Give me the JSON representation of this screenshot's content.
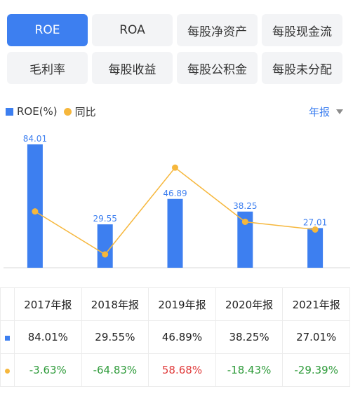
{
  "tabs": [
    "ROE",
    "ROA",
    "每股净资产",
    "每股现金流",
    "毛利率",
    "每股收益",
    "每股公积金",
    "每股未分配"
  ],
  "active_tab": "ROE",
  "legend": {
    "bar_label": "ROE(%)",
    "line_label": "同比"
  },
  "period_selector": "年报",
  "colors": {
    "accent": "#3d7ff0",
    "line": "#f6b73c",
    "negative": "#2e9b3a",
    "positive": "#e03a3a"
  },
  "chart_data": {
    "type": "bar",
    "categories": [
      "2017年报",
      "2018年报",
      "2019年报",
      "2020年报",
      "2021年报"
    ],
    "series": [
      {
        "name": "ROE(%)",
        "type": "bar",
        "values": [
          84.01,
          29.55,
          46.89,
          38.25,
          27.01
        ]
      },
      {
        "name": "同比",
        "type": "line",
        "values": [
          -3.63,
          -64.83,
          58.68,
          -18.43,
          -29.39
        ]
      }
    ],
    "grid": false,
    "legend_position": "top-left"
  },
  "table": {
    "headers": [
      "2017年报",
      "2018年报",
      "2019年报",
      "2020年报",
      "2021年报"
    ],
    "roe_row": [
      "84.01%",
      "29.55%",
      "46.89%",
      "38.25%",
      "27.01%"
    ],
    "yoy_row": [
      "-3.63%",
      "-64.83%",
      "58.68%",
      "-18.43%",
      "-29.39%"
    ]
  }
}
